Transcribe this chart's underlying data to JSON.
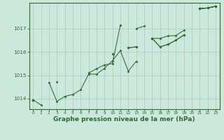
{
  "bg_color": "#cce8dc",
  "grid_color": "#aad4c4",
  "line_color": "#2d6a2d",
  "marker_color": "#2d6a2d",
  "xlabel": "Graphe pression niveau de la mer (hPa)",
  "xlabel_fontsize": 6.5,
  "ylim": [
    1013.55,
    1018.1
  ],
  "xlim": [
    -0.5,
    23.5
  ],
  "yticks": [
    1014,
    1015,
    1016,
    1017
  ],
  "xticks": [
    0,
    1,
    2,
    3,
    4,
    5,
    6,
    7,
    8,
    9,
    10,
    11,
    12,
    13,
    14,
    15,
    16,
    17,
    18,
    19,
    20,
    21,
    22,
    23
  ],
  "series": [
    [
      1013.95,
      1013.73,
      null,
      1014.72,
      null,
      null,
      null,
      1015.1,
      1015.28,
      1015.45,
      1015.5,
      1017.15,
      null,
      1017.0,
      1017.1,
      null,
      null,
      null,
      null,
      null,
      null,
      1017.85,
      1017.88,
      1017.95
    ],
    [
      1013.95,
      null,
      1014.7,
      1013.88,
      1014.1,
      1014.18,
      1014.38,
      1015.05,
      1015.05,
      1015.3,
      1015.62,
      1016.05,
      1015.18,
      1015.6,
      null,
      1016.58,
      1016.22,
      1016.32,
      1016.5,
      1016.72,
      null,
      1017.85,
      1017.88,
      1017.95
    ],
    [
      1013.95,
      null,
      null,
      null,
      null,
      null,
      null,
      null,
      null,
      null,
      1015.92,
      null,
      1016.17,
      1016.22,
      null,
      1016.58,
      1016.22,
      1016.32,
      1016.5,
      1016.72,
      null,
      1017.85,
      1017.88,
      1017.95
    ],
    [
      1013.95,
      null,
      null,
      null,
      null,
      null,
      null,
      null,
      null,
      null,
      1015.92,
      null,
      1016.17,
      1016.22,
      null,
      1016.58,
      1016.58,
      1016.68,
      1016.7,
      1016.92,
      null,
      1017.85,
      1017.88,
      1017.95
    ]
  ]
}
